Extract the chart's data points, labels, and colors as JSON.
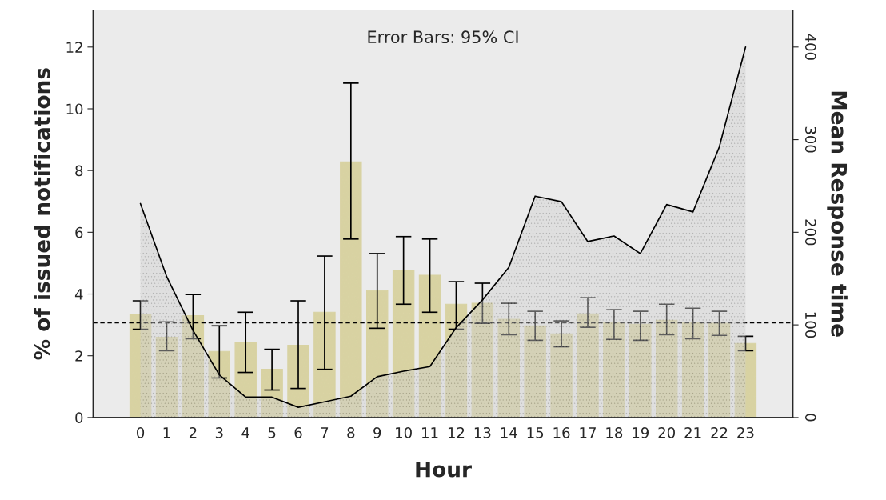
{
  "chart_data": {
    "type": "bar",
    "xlabel": "Hour",
    "ylabel": "% of issued notifications",
    "y2label": "Mean Response time",
    "annotations": [
      "Error Bars: 95% CI"
    ],
    "categories": [
      "0",
      "1",
      "2",
      "3",
      "4",
      "5",
      "6",
      "7",
      "8",
      "9",
      "10",
      "11",
      "12",
      "13",
      "14",
      "15",
      "16",
      "17",
      "18",
      "19",
      "20",
      "21",
      "22",
      "23"
    ],
    "series": [
      {
        "color": "#d8d2a2",
        "values": [
          3.33,
          2.6,
          3.3,
          2.14,
          2.42,
          1.56,
          2.34,
          3.41,
          8.28,
          4.11,
          4.77,
          4.61,
          3.67,
          3.7,
          3.18,
          2.97,
          2.71,
          3.36,
          3.07,
          3.02,
          3.15,
          3.07,
          3.05,
          2.4
        ],
        "errors": [
          [
            2.86,
            3.78
          ],
          [
            2.16,
            3.1
          ],
          [
            2.55,
            3.98
          ],
          [
            1.28,
            2.97
          ],
          [
            1.46,
            3.41
          ],
          [
            0.89,
            2.21
          ],
          [
            0.94,
            3.78
          ],
          [
            1.56,
            5.23
          ],
          [
            5.78,
            10.83
          ],
          [
            2.89,
            5.31
          ],
          [
            3.67,
            5.86
          ],
          [
            3.41,
            5.78
          ],
          [
            2.86,
            4.4
          ],
          [
            3.05,
            4.35
          ],
          [
            2.68,
            3.7
          ],
          [
            2.5,
            3.44
          ],
          [
            2.29,
            3.13
          ],
          [
            2.92,
            3.88
          ],
          [
            2.53,
            3.49
          ],
          [
            2.5,
            3.44
          ],
          [
            2.68,
            3.67
          ],
          [
            2.55,
            3.54
          ],
          [
            2.66,
            3.44
          ],
          [
            2.16,
            2.63
          ]
        ]
      },
      {
        "type": "area",
        "axis": "y2",
        "color": "#d0d0d0",
        "values": [
          231,
          152,
          94,
          46,
          22,
          22,
          11,
          17,
          23,
          44,
          50,
          55,
          97,
          127,
          162,
          239,
          233,
          190,
          196,
          177,
          230,
          222,
          292,
          400
        ]
      }
    ],
    "ylim": [
      0,
      13.2
    ],
    "yticks": [
      0,
      2,
      4,
      6,
      8,
      10,
      12
    ],
    "y2lim": [
      0,
      440
    ],
    "y2ticks": [
      0,
      100,
      200,
      300,
      400
    ],
    "ref_lines": [
      {
        "axis": "y",
        "value": 3.07,
        "line_style": "dashed",
        "color": "#000000"
      }
    ],
    "grid": false,
    "legend": false
  }
}
